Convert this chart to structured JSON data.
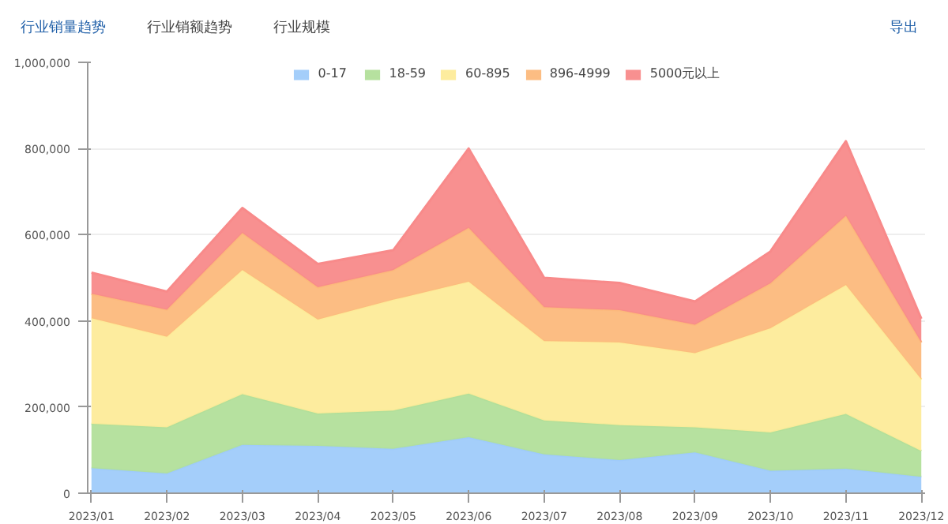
{
  "chart_data": {
    "type": "area",
    "stacked": true,
    "title": "行业销量趋势",
    "annotations": [
      "行业销额趋势",
      "行业规模",
      "导出"
    ],
    "categories": [
      "2023/01",
      "2023/02",
      "2023/03",
      "2023/04",
      "2023/05",
      "2023/06",
      "2023/07",
      "2023/08",
      "2023/09",
      "2023/10",
      "2023/11",
      "2023/12"
    ],
    "series": [
      {
        "name": "0-17",
        "color": "#9fcbfa",
        "values": [
          58000,
          46000,
          112000,
          110000,
          103000,
          130000,
          90000,
          77000,
          95000,
          52000,
          57000,
          38000
        ]
      },
      {
        "name": "18-59",
        "color": "#b2df9a",
        "values": [
          103000,
          107000,
          118000,
          75000,
          89000,
          101000,
          79000,
          81000,
          58000,
          89000,
          127000,
          60000
        ]
      },
      {
        "name": "60-895",
        "color": "#fdeb99",
        "values": [
          245000,
          210000,
          288000,
          218000,
          257000,
          260000,
          184000,
          192000,
          172000,
          242000,
          299000,
          166000
        ]
      },
      {
        "name": "896-4999",
        "color": "#fcb97c",
        "values": [
          57000,
          63000,
          86000,
          75000,
          69000,
          125000,
          79000,
          75000,
          66000,
          104000,
          161000,
          86000
        ]
      },
      {
        "name": "5000元以上",
        "color": "#f88a8a",
        "values": [
          49000,
          42000,
          58000,
          54000,
          46000,
          184000,
          68000,
          63000,
          54000,
          74000,
          173000,
          55000
        ]
      }
    ],
    "ylim": [
      0,
      1000000
    ],
    "yticks": [
      0,
      {
        "value": 200000,
        "label": "200,000"
      },
      {
        "value": 400000,
        "label": "400,000"
      },
      {
        "value": 600000,
        "label": "600,000"
      },
      {
        "value": 800000,
        "label": "800,000"
      },
      {
        "value": 1000000,
        "label": "1,000,000"
      }
    ],
    "grid": "y",
    "legend": "top"
  }
}
